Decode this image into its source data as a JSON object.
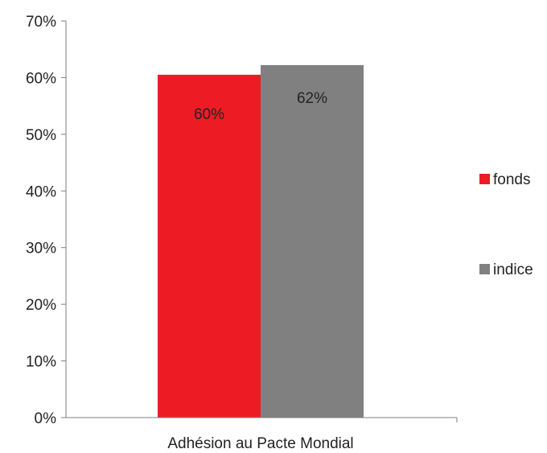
{
  "chart_data": {
    "type": "bar",
    "categories": [
      "Adhésion au Pacte Mondial"
    ],
    "series": [
      {
        "name": "fonds",
        "values": [
          0.605
        ],
        "label": "60%",
        "color": "#ed1c24"
      },
      {
        "name": "indice",
        "values": [
          0.622
        ],
        "label": "62%",
        "color": "#808080"
      }
    ],
    "ylim": [
      0,
      0.7
    ],
    "y_ticks": [
      {
        "value": 0,
        "label": "0%"
      },
      {
        "value": 0.1,
        "label": "10%"
      },
      {
        "value": 0.2,
        "label": "20%"
      },
      {
        "value": 0.3,
        "label": "30%"
      },
      {
        "value": 0.4,
        "label": "40%"
      },
      {
        "value": 0.5,
        "label": "50%"
      },
      {
        "value": 0.6,
        "label": "60%"
      },
      {
        "value": 0.7,
        "label": "70%"
      }
    ],
    "grid": false,
    "legend": "right"
  }
}
